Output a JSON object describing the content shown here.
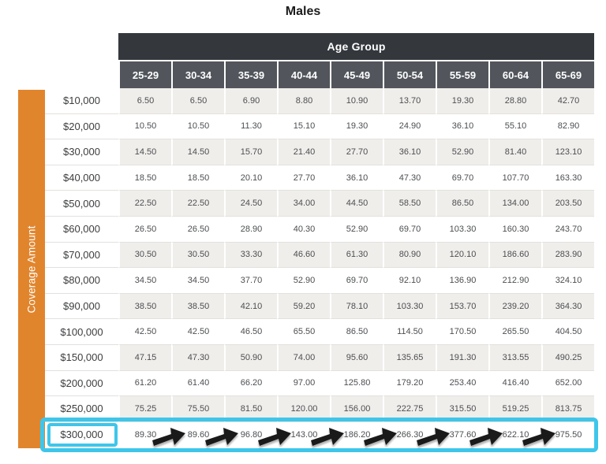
{
  "title": "Males",
  "colors": {
    "orange_bar": "#E1852D",
    "header_dark": "#34383D",
    "header_mid": "#52565C",
    "row_stripe": "#F0EEEB",
    "grid_line": "#E3E1DD",
    "highlight_cyan": "#3EC6EA",
    "arrow_black": "#1A1A1A"
  },
  "chart_data": {
    "type": "table",
    "title": "Males",
    "column_group_label": "Age Group",
    "row_group_label": "Coverage Amount",
    "columns": [
      "25-29",
      "30-34",
      "35-39",
      "40-44",
      "45-49",
      "50-54",
      "55-59",
      "60-64",
      "65-69"
    ],
    "row_labels": [
      "$10,000",
      "$20,000",
      "$30,000",
      "$40,000",
      "$50,000",
      "$60,000",
      "$70,000",
      "$80,000",
      "$90,000",
      "$100,000",
      "$150,000",
      "$200,000",
      "$250,000",
      "$300,000"
    ],
    "rows": [
      [
        "6.50",
        "6.50",
        "6.90",
        "8.80",
        "10.90",
        "13.70",
        "19.30",
        "28.80",
        "42.70"
      ],
      [
        "10.50",
        "10.50",
        "11.30",
        "15.10",
        "19.30",
        "24.90",
        "36.10",
        "55.10",
        "82.90"
      ],
      [
        "14.50",
        "14.50",
        "15.70",
        "21.40",
        "27.70",
        "36.10",
        "52.90",
        "81.40",
        "123.10"
      ],
      [
        "18.50",
        "18.50",
        "20.10",
        "27.70",
        "36.10",
        "47.30",
        "69.70",
        "107.70",
        "163.30"
      ],
      [
        "22.50",
        "22.50",
        "24.50",
        "34.00",
        "44.50",
        "58.50",
        "86.50",
        "134.00",
        "203.50"
      ],
      [
        "26.50",
        "26.50",
        "28.90",
        "40.30",
        "52.90",
        "69.70",
        "103.30",
        "160.30",
        "243.70"
      ],
      [
        "30.50",
        "30.50",
        "33.30",
        "46.60",
        "61.30",
        "80.90",
        "120.10",
        "186.60",
        "283.90"
      ],
      [
        "34.50",
        "34.50",
        "37.70",
        "52.90",
        "69.70",
        "92.10",
        "136.90",
        "212.90",
        "324.10"
      ],
      [
        "38.50",
        "38.50",
        "42.10",
        "59.20",
        "78.10",
        "103.30",
        "153.70",
        "239.20",
        "364.30"
      ],
      [
        "42.50",
        "42.50",
        "46.50",
        "65.50",
        "86.50",
        "114.50",
        "170.50",
        "265.50",
        "404.50"
      ],
      [
        "47.15",
        "47.30",
        "50.90",
        "74.00",
        "95.60",
        "135.65",
        "191.30",
        "313.55",
        "490.25"
      ],
      [
        "61.20",
        "61.40",
        "66.20",
        "97.00",
        "125.80",
        "179.20",
        "253.40",
        "416.40",
        "652.00"
      ],
      [
        "75.25",
        "75.50",
        "81.50",
        "120.00",
        "156.00",
        "222.75",
        "315.50",
        "519.25",
        "813.75"
      ],
      [
        "89.30",
        "89.60",
        "96.80",
        "143.00",
        "186.20",
        "266.30",
        "377.60",
        "622.10",
        "975.50"
      ]
    ],
    "annotations": {
      "highlighted_row": "$300,000",
      "highlight_style": "cyan box around entire row and around row label cell",
      "arrows": "8 black arrows pointing right between consecutive values of the highlighted row",
      "arrow_count": 8
    },
    "layout": {
      "striped_rows": "odd data rows shaded light gray",
      "legend_position": "none",
      "grid": "light horizontal lines, white column separators"
    }
  }
}
